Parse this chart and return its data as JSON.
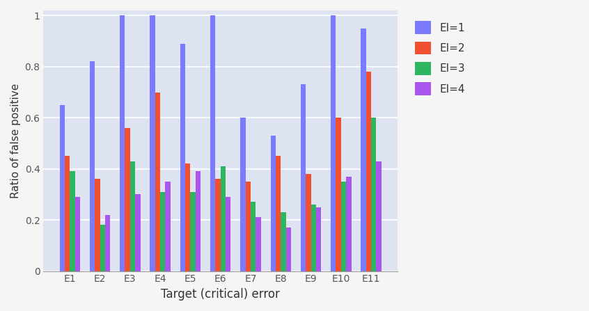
{
  "categories": [
    "E1",
    "E2",
    "E3",
    "E4",
    "E5",
    "E6",
    "E7",
    "E8",
    "E9",
    "E10",
    "E11"
  ],
  "series": {
    "EI=1": [
      0.65,
      0.82,
      1.0,
      1.0,
      0.89,
      1.0,
      0.6,
      0.53,
      0.73,
      1.0,
      0.95
    ],
    "EI=2": [
      0.45,
      0.36,
      0.56,
      0.7,
      0.42,
      0.36,
      0.35,
      0.45,
      0.38,
      0.6,
      0.78
    ],
    "EI=3": [
      0.39,
      0.18,
      0.43,
      0.31,
      0.31,
      0.41,
      0.27,
      0.23,
      0.26,
      0.35,
      0.6
    ],
    "EI=4": [
      0.29,
      0.22,
      0.3,
      0.35,
      0.39,
      0.29,
      0.21,
      0.17,
      0.25,
      0.37,
      0.43
    ]
  },
  "colors": {
    "EI=1": "#7b7bff",
    "EI=2": "#f05030",
    "EI=3": "#2db560",
    "EI=4": "#aa55ee"
  },
  "xlabel": "Target (critical) error",
  "ylabel": "Ratio of false positive",
  "ylim": [
    0,
    1.02
  ],
  "axes_bg_color": "#dde3f0",
  "fig_bg_color": "#f5f5f5",
  "grid_color": "#ffffff",
  "bar_width": 0.17,
  "title": ""
}
